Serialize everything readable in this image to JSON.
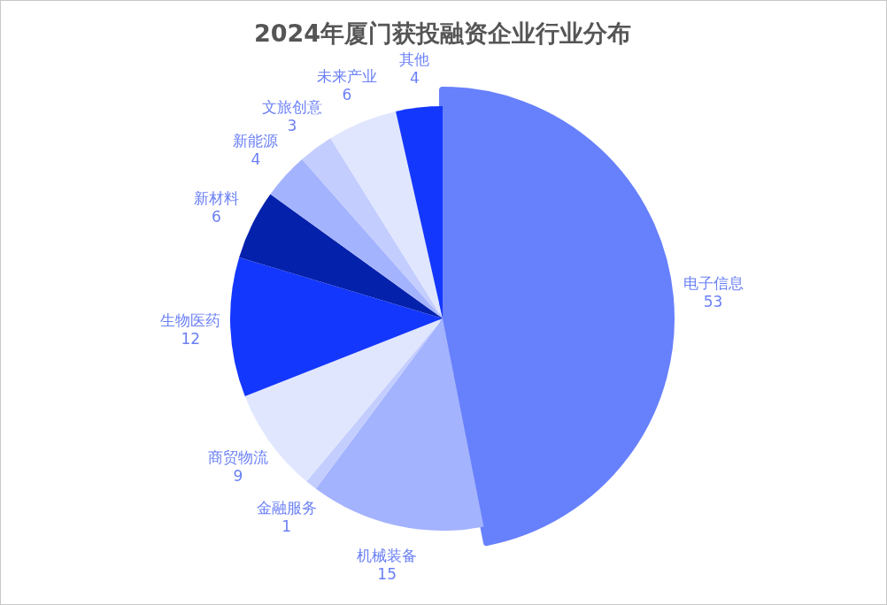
{
  "chart_data": {
    "type": "pie",
    "title": "2024年厦门获投融资企业行业分布",
    "categories": [
      "电子信息",
      "机械装备",
      "金融服务",
      "商贸物流",
      "生物医药",
      "新材料",
      "新能源",
      "文旅创意",
      "未来产业",
      "其他"
    ],
    "values": [
      53,
      15,
      1,
      9,
      12,
      6,
      4,
      3,
      6,
      4
    ],
    "colors": [
      "#6780fc",
      "#a4b3fe",
      "#c3cdfe",
      "#e0e6fe",
      "#1437fe",
      "#0421ac",
      "#a4b3fe",
      "#c3cdfe",
      "#e0e6fe",
      "#1437fe"
    ],
    "data_labels": true
  }
}
